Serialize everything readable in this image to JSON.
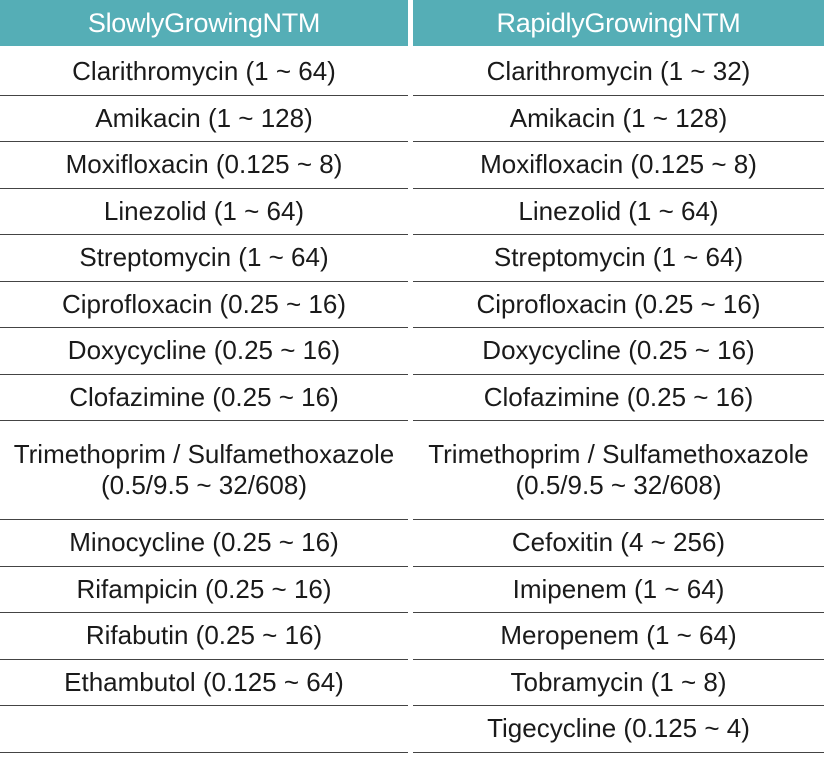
{
  "table": {
    "headers": [
      "SlowlyGrowingNTM",
      "RapidlyGrowingNTM"
    ],
    "slowly_growing": [
      "Clarithromycin (1 ~ 64)",
      "Amikacin (1 ~ 128)",
      "Moxifloxacin (0.125 ~ 8)",
      "Linezolid (1 ~ 64)",
      "Streptomycin (1 ~ 64)",
      "Ciprofloxacin (0.25 ~ 16)",
      "Doxycycline (0.25 ~ 16)",
      "Clofazimine (0.25 ~ 16)",
      "Trimethoprim / Sulfamethoxazole (0.5/9.5 ~ 32/608)",
      "Minocycline (0.25 ~ 16)",
      "Rifampicin (0.25 ~ 16)",
      "Rifabutin (0.25 ~ 16)",
      "Ethambutol (0.125 ~ 64)",
      ""
    ],
    "rapidly_growing": [
      "Clarithromycin (1 ~ 32)",
      "Amikacin (1 ~ 128)",
      "Moxifloxacin (0.125 ~ 8)",
      "Linezolid (1 ~ 64)",
      "Streptomycin (1 ~ 64)",
      "Ciprofloxacin (0.25 ~ 16)",
      "Doxycycline (0.25 ~ 16)",
      "Clofazimine (0.25 ~ 16)",
      "Trimethoprim / Sulfamethoxazole (0.5/9.5 ~ 32/608)",
      "Cefoxitin (4 ~ 256)",
      "Imipenem (1 ~ 64)",
      "Meropenem (1 ~ 64)",
      "Tobramycin (1 ~ 8)",
      "Tigecycline (0.125 ~ 4)"
    ]
  },
  "colors": {
    "header_bg": "#55aeb6",
    "header_text": "#ffffff",
    "rule": "#444444",
    "body_text": "#1a1a1a"
  }
}
